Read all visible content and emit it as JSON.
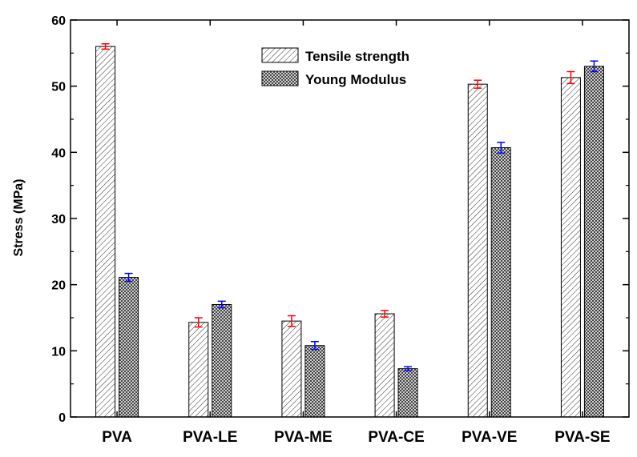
{
  "chart_data": {
    "type": "bar",
    "title": "",
    "xlabel": "",
    "ylabel": "Stress (MPa)",
    "ylim": [
      0,
      60
    ],
    "yticks": [
      0,
      10,
      20,
      30,
      40,
      50,
      60
    ],
    "categories": [
      "PVA",
      "PVA-LE",
      "PVA-ME",
      "PVA-CE",
      "PVA-VE",
      "PVA-SE"
    ],
    "series": [
      {
        "name": "Tensile strength",
        "values": [
          56.0,
          14.3,
          14.5,
          15.6,
          50.3,
          51.3
        ],
        "errors": [
          0.4,
          0.7,
          0.8,
          0.5,
          0.6,
          0.9
        ],
        "error_color": "#ff0000",
        "pattern": "diagonal-lines"
      },
      {
        "name": "Young Modulus",
        "values": [
          21.1,
          17.0,
          10.8,
          7.3,
          40.7,
          53.0
        ],
        "errors": [
          0.6,
          0.5,
          0.6,
          0.3,
          0.8,
          0.8
        ],
        "error_color": "#0000ff",
        "pattern": "crosshatch"
      }
    ],
    "legend_position": "top-center",
    "grid": false
  }
}
